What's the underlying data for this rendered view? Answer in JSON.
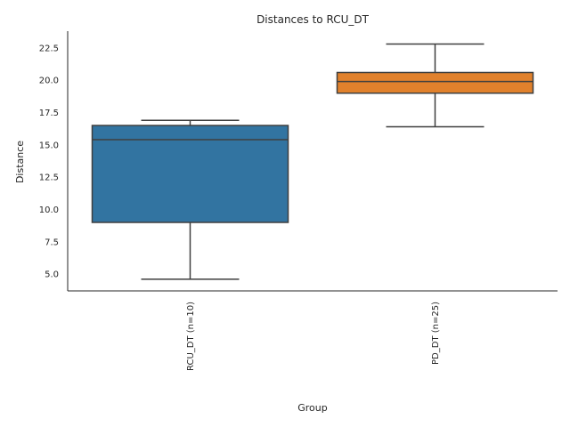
{
  "chart_data": {
    "type": "box",
    "title": "Distances to RCU_DT",
    "xlabel": "Group",
    "ylabel": "Distance",
    "ylim": [
      3.7,
      23.8
    ],
    "y_ticks": [
      "5.0",
      "7.5",
      "10.0",
      "12.5",
      "15.0",
      "17.5",
      "20.0",
      "22.5"
    ],
    "categories": [
      "RCU_DT (n=10)",
      "PD_DT (n=25)"
    ],
    "boxes": [
      {
        "category": "RCU_DT (n=10)",
        "whisker_low": 4.6,
        "q1": 9.0,
        "median": 15.4,
        "q3": 16.5,
        "whisker_high": 16.9,
        "color": "#3274a1"
      },
      {
        "category": "PD_DT (n=25)",
        "whisker_low": 16.4,
        "q1": 19.0,
        "median": 19.9,
        "q3": 20.6,
        "whisker_high": 22.8,
        "color": "#e1812c"
      }
    ],
    "grid": false,
    "legend": "none"
  }
}
